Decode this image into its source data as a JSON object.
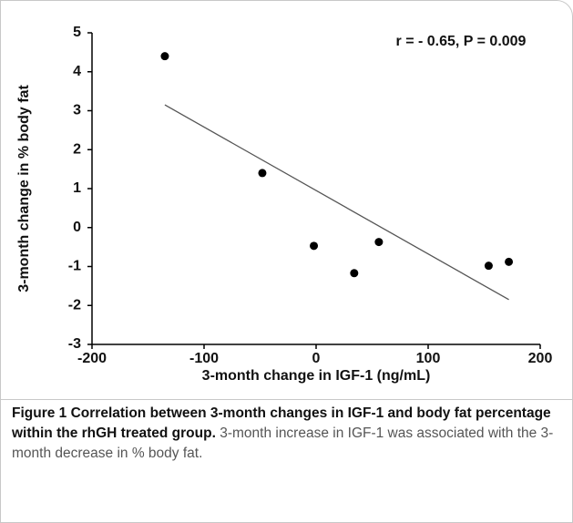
{
  "chart_data": {
    "type": "scatter",
    "x_label": "3-month change in IGF-1 (ng/mL)",
    "y_label": "3-month change in % body fat",
    "annotation": "r =  - 0.65, P = 0.009",
    "x": [
      -135,
      -48,
      -2,
      34,
      56,
      154,
      172
    ],
    "values": [
      4.4,
      1.4,
      -0.47,
      -1.17,
      -0.37,
      -0.98,
      -0.88
    ],
    "color": "#000000",
    "trendline": {
      "x": [
        -135,
        172
      ],
      "y": [
        3.15,
        -1.85
      ],
      "color": "#555555"
    },
    "xlim": [
      -200,
      200
    ],
    "xticks": [
      -200,
      -100,
      0,
      100,
      200
    ],
    "ylim": [
      -3,
      5
    ],
    "yticks": [
      -3,
      -2,
      -1,
      0,
      1,
      2,
      3,
      4,
      5
    ],
    "grid": false
  },
  "caption": {
    "title": "Figure 1 Correlation between 3-month changes in IGF-1 and body fat percentage within the rhGH treated group.",
    "text": "3-month increase in IGF-1 was associated with the 3-month decrease in % body fat."
  }
}
